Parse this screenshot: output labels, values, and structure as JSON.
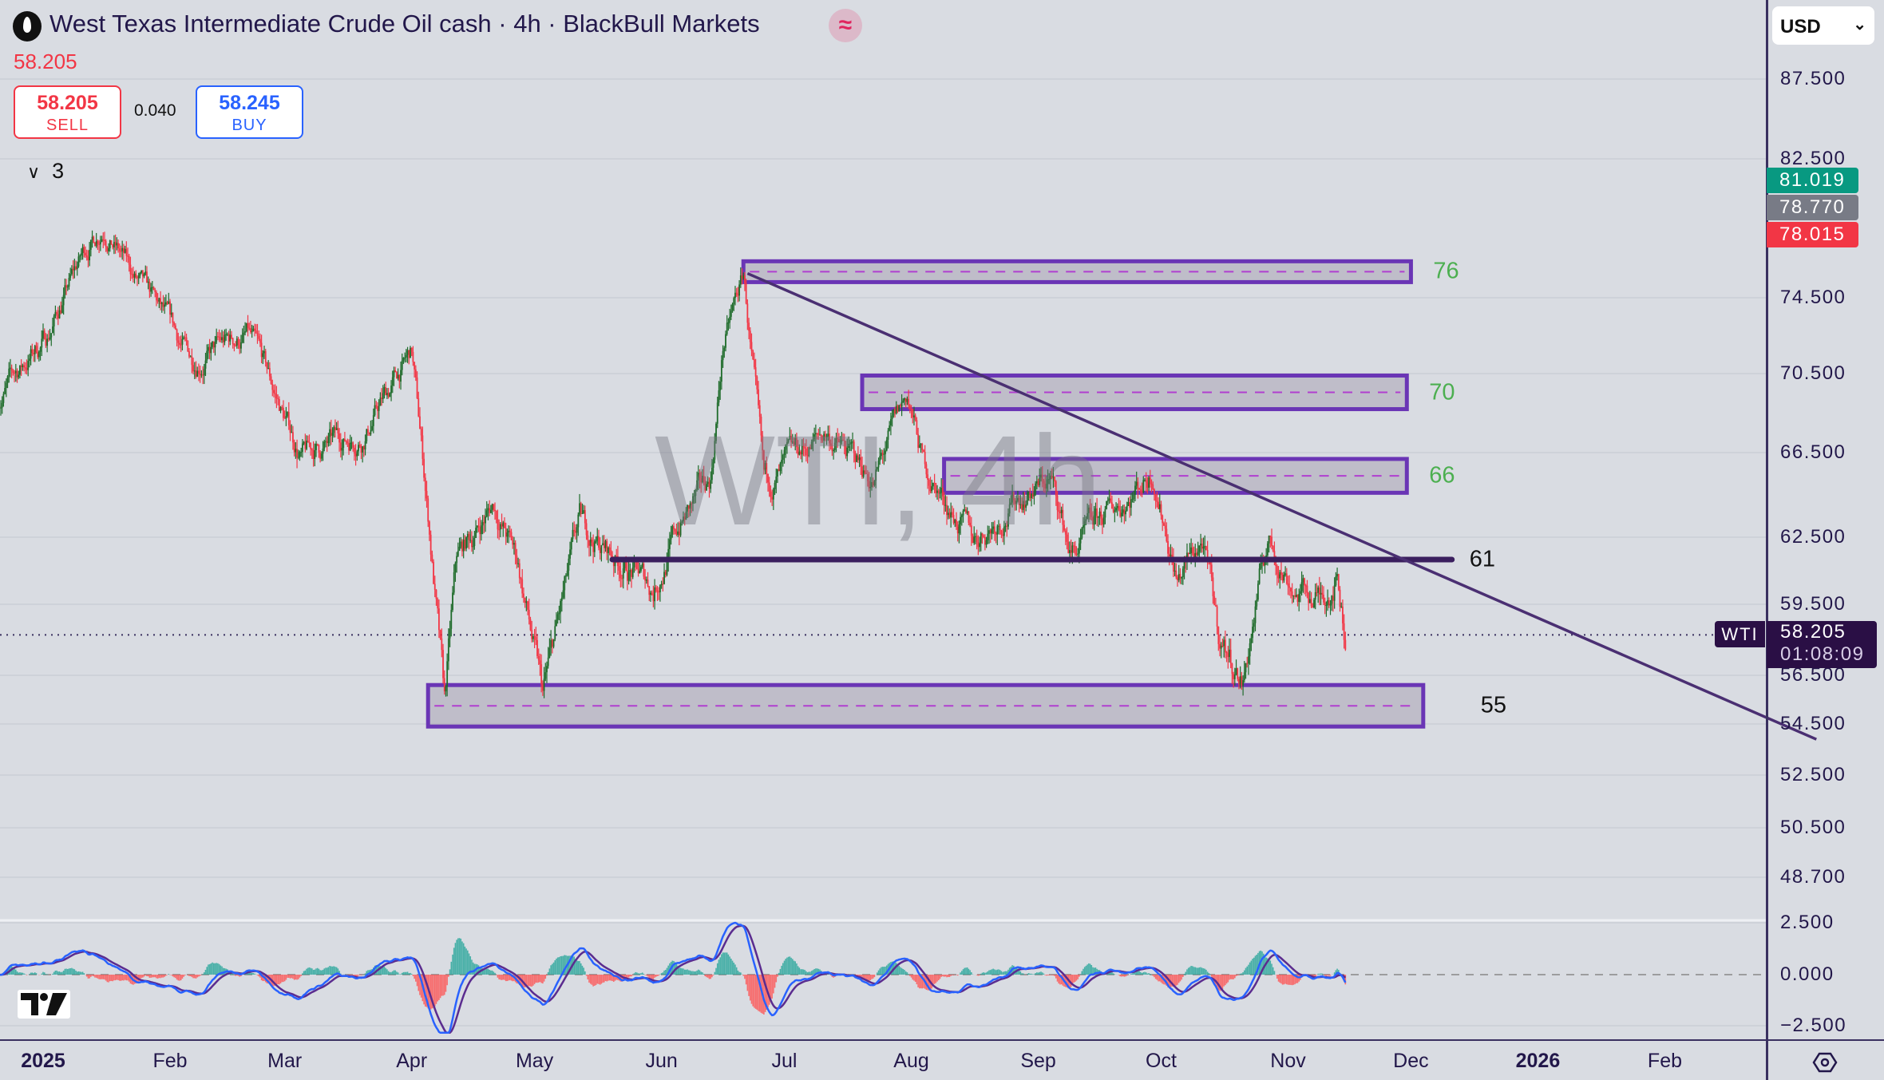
{
  "header": {
    "title": "West Texas Intermediate Crude Oil cash · 4h · BlackBull Markets",
    "last_price": "58.205",
    "sell_price": "58.205",
    "sell_label": "SELL",
    "spread": "0.040",
    "buy_price": "58.245",
    "buy_label": "BUY",
    "indicator_count": "3",
    "icons": [
      "oil-drop-icon",
      "wave-icon",
      "chevron-down-icon"
    ]
  },
  "watermark": "WTI, 4h",
  "axis": {
    "currency": "USD",
    "price_ticks": [
      "87.500",
      "82.500",
      "74.500",
      "70.500",
      "66.500",
      "62.500",
      "59.500",
      "56.500",
      "54.500",
      "52.500",
      "50.500",
      "48.700"
    ],
    "price_tick_values": [
      87.5,
      82.5,
      74.5,
      70.5,
      66.5,
      62.5,
      59.5,
      56.5,
      54.5,
      52.5,
      50.5,
      48.7
    ],
    "osc_ticks": [
      "2.500",
      "0.000",
      "−2.500"
    ],
    "badges": [
      {
        "value": "81.019",
        "color": "#089981"
      },
      {
        "value": "78.770",
        "color": "#787b86"
      },
      {
        "value": "78.015",
        "color": "#f23645"
      }
    ],
    "symbol": "WTI",
    "current_price": "58.205",
    "countdown": "01:08:09",
    "time_labels": [
      {
        "label": "2025",
        "date": "2025-01-01",
        "bold": true
      },
      {
        "label": "Feb",
        "date": "2025-02-01"
      },
      {
        "label": "Mar",
        "date": "2025-03-01"
      },
      {
        "label": "Apr",
        "date": "2025-04-01"
      },
      {
        "label": "May",
        "date": "2025-05-01"
      },
      {
        "label": "Jun",
        "date": "2025-06-01"
      },
      {
        "label": "Jul",
        "date": "2025-07-01"
      },
      {
        "label": "Aug",
        "date": "2025-08-01"
      },
      {
        "label": "Sep",
        "date": "2025-09-01"
      },
      {
        "label": "Oct",
        "date": "2025-10-01"
      },
      {
        "label": "Nov",
        "date": "2025-11-01"
      },
      {
        "label": "Dec",
        "date": "2025-12-01"
      },
      {
        "label": "2026",
        "date": "2026-01-01",
        "bold": true
      },
      {
        "label": "Feb",
        "date": "2026-02-01"
      }
    ]
  },
  "chart_data": {
    "type": "candlestick",
    "symbol": "WTI",
    "interval": "4h",
    "colors": {
      "up": "#1e6b2a",
      "down": "#f23645",
      "zone_border": "#6a35b5",
      "zone_mid": "#b03fd0",
      "line": "#3b1f5e"
    },
    "price_path": [
      [
        "2024-12-21",
        69.3
      ],
      [
        "2025-01-02",
        72.5
      ],
      [
        "2025-01-11",
        77.1
      ],
      [
        "2025-01-16",
        78.8
      ],
      [
        "2025-01-23",
        75.7
      ],
      [
        "2025-02-06",
        71.2
      ],
      [
        "2025-02-20",
        72.5
      ],
      [
        "2025-03-05",
        66.3
      ],
      [
        "2025-03-20",
        67.5
      ],
      [
        "2025-04-01",
        71.5
      ],
      [
        "2025-04-05",
        63.5
      ],
      [
        "2025-04-09",
        55.2
      ],
      [
        "2025-04-12",
        61.3
      ],
      [
        "2025-04-21",
        64.1
      ],
      [
        "2025-04-27",
        61.3
      ],
      [
        "2025-05-03",
        55.5
      ],
      [
        "2025-05-12",
        62.9
      ],
      [
        "2025-05-30",
        60.2
      ],
      [
        "2025-06-05",
        62.9
      ],
      [
        "2025-06-13",
        65.2
      ],
      [
        "2025-06-16",
        71.8
      ],
      [
        "2025-06-21",
        75.7
      ],
      [
        "2025-06-23",
        71.2
      ],
      [
        "2025-06-26",
        64.6
      ],
      [
        "2025-07-11",
        67.5
      ],
      [
        "2025-07-23",
        65.2
      ],
      [
        "2025-07-31",
        69.3
      ],
      [
        "2025-08-04",
        65.8
      ],
      [
        "2025-08-16",
        62.3
      ],
      [
        "2025-08-28",
        64.6
      ],
      [
        "2025-09-04",
        65.2
      ],
      [
        "2025-09-09",
        61.7
      ],
      [
        "2025-09-21",
        64.1
      ],
      [
        "2025-09-29",
        65.8
      ],
      [
        "2025-10-05",
        60.7
      ],
      [
        "2025-10-11",
        62.3
      ],
      [
        "2025-10-15",
        58.1
      ],
      [
        "2025-10-21",
        56.3
      ],
      [
        "2025-10-27",
        62.3
      ],
      [
        "2025-11-03",
        60.2
      ],
      [
        "2025-11-09",
        59.7
      ],
      [
        "2025-11-13",
        61.0
      ],
      [
        "2025-11-15",
        58.2
      ]
    ],
    "zones": [
      {
        "label": "76",
        "top": 76.6,
        "bottom": 75.4,
        "from": "2025-06-21",
        "to": "2025-12-01",
        "label_color": "#4caf50"
      },
      {
        "label": "70",
        "top": 70.4,
        "bottom": 68.7,
        "from": "2025-07-20",
        "to": "2025-11-30",
        "label_color": "#4caf50"
      },
      {
        "label": "66",
        "top": 66.2,
        "bottom": 64.6,
        "from": "2025-08-09",
        "to": "2025-11-30",
        "label_color": "#4caf50"
      },
      {
        "label": "55",
        "top": 56.1,
        "bottom": 54.4,
        "from": "2025-04-05",
        "to": "2025-12-04",
        "label_color": "#111111"
      }
    ],
    "horizontal_line": {
      "label": "61",
      "price": 61.5,
      "from": "2025-05-20",
      "to": "2025-12-11"
    },
    "trendline": {
      "from": [
        "2025-06-22",
        75.9
      ],
      "to": [
        "2026-03-10",
        53.9
      ]
    },
    "oscillator": {
      "type": "macd",
      "ylim": [
        -2.5,
        2.5
      ]
    }
  }
}
